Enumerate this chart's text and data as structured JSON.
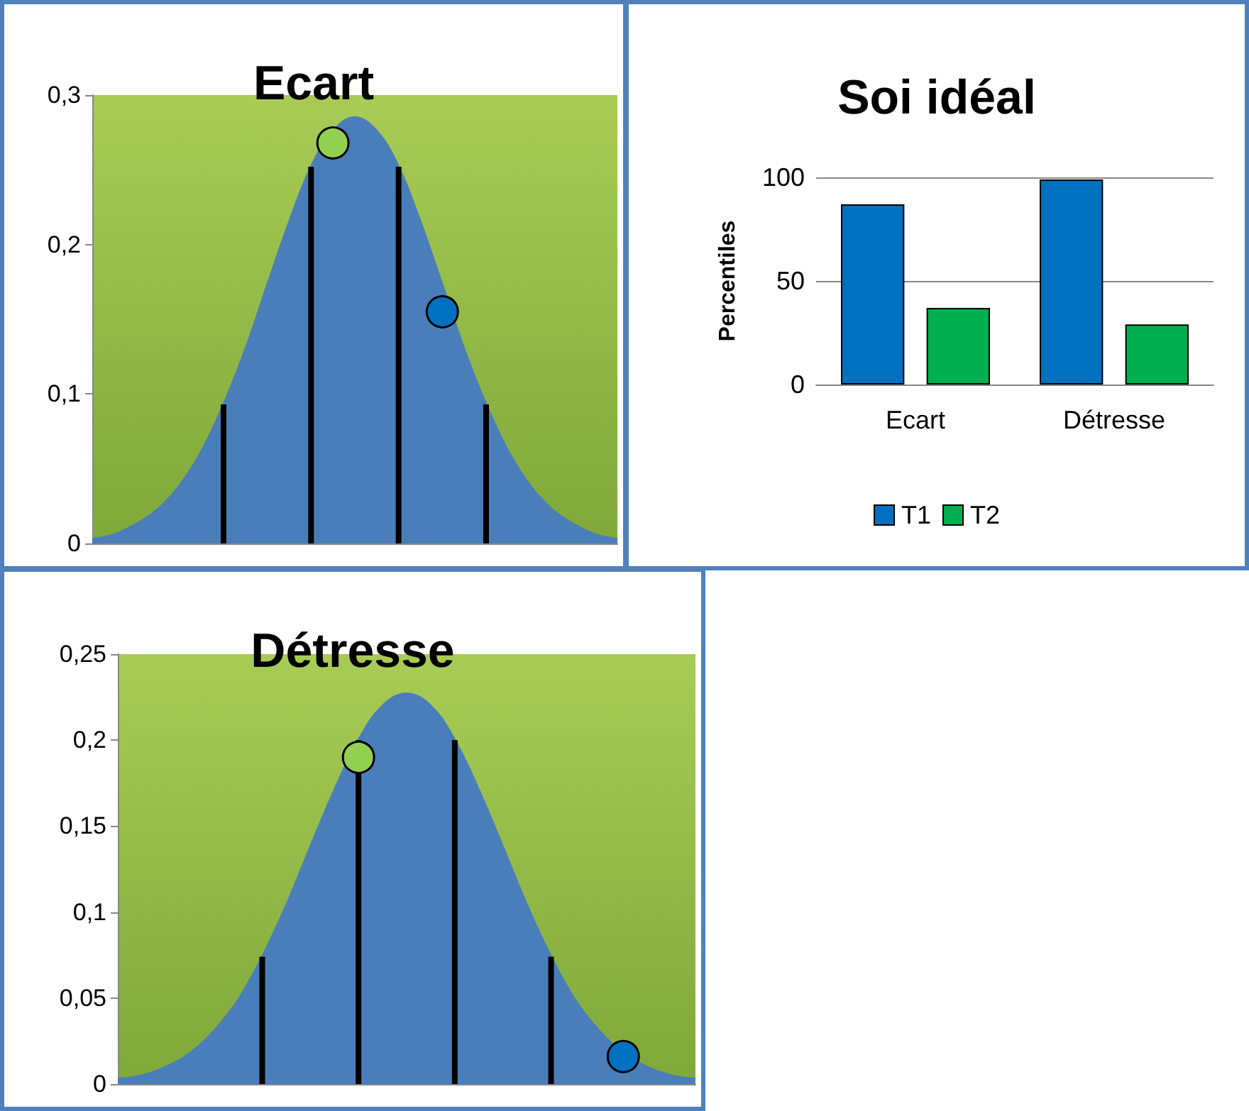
{
  "chart_data": [
    {
      "type": "area",
      "title": "Ecart",
      "categories": [
        null,
        null,
        null,
        null,
        null,
        null,
        null,
        null,
        null,
        null,
        null,
        null,
        null,
        null,
        null,
        null,
        null,
        null,
        null,
        null,
        null,
        null,
        null,
        null,
        null
      ],
      "ylim": [
        0,
        0.3
      ],
      "yticks": [
        {
          "value": 0,
          "label": "0"
        },
        {
          "value": 0.1,
          "label": "0,1"
        },
        {
          "value": 0.2,
          "label": "0,2"
        },
        {
          "value": 0.3,
          "label": "0,3"
        }
      ],
      "grid": false,
      "series": [
        {
          "type": "area",
          "color": "#4a7ebb",
          "values": [
            0.003,
            0.006,
            0.013,
            0.023,
            0.039,
            0.062,
            0.093,
            0.13,
            0.173,
            0.215,
            0.252,
            0.276,
            0.285,
            0.276,
            0.252,
            0.215,
            0.173,
            0.13,
            0.093,
            0.062,
            0.039,
            0.023,
            0.013,
            0.006,
            0.003
          ]
        },
        {
          "type": "bar",
          "color": "#000000",
          "values": [
            null,
            null,
            null,
            null,
            null,
            null,
            0.093,
            null,
            null,
            null,
            0.252,
            null,
            null,
            null,
            0.252,
            null,
            null,
            null,
            0.093,
            null,
            null,
            null,
            null,
            null,
            null
          ]
        },
        {
          "type": "scatter",
          "color": "#92d050",
          "marker": "circle",
          "values": [
            null,
            null,
            null,
            null,
            null,
            null,
            null,
            null,
            null,
            null,
            null,
            0.268,
            null,
            null,
            null,
            null,
            null,
            null,
            null,
            null,
            null,
            null,
            null,
            null,
            null
          ]
        },
        {
          "type": "scatter",
          "color": "#0070c0",
          "marker": "circle",
          "values": [
            null,
            null,
            null,
            null,
            null,
            null,
            null,
            null,
            null,
            null,
            null,
            null,
            null,
            null,
            null,
            null,
            0.155,
            null,
            null,
            null,
            null,
            null,
            null,
            null,
            null
          ]
        }
      ]
    },
    {
      "type": "bar",
      "title": "Soi idéal",
      "ylabel": "Percentiles",
      "categories": [
        "Ecart",
        "Détresse"
      ],
      "ylim": [
        0,
        100
      ],
      "yticks": [
        0,
        50,
        100
      ],
      "grid": "y",
      "legend": "bottom",
      "series": [
        {
          "name": "T1",
          "color": "#0070c0",
          "values": [
            87,
            99
          ]
        },
        {
          "name": "T2",
          "color": "#00b050",
          "values": [
            37,
            29
          ]
        }
      ]
    },
    {
      "type": "area",
      "title": "Détresse",
      "categories": [
        null,
        null,
        null,
        null,
        null,
        null,
        null,
        null,
        null,
        null,
        null,
        null,
        null,
        null,
        null,
        null,
        null,
        null,
        null,
        null,
        null,
        null,
        null,
        null,
        null
      ],
      "ylim": [
        0,
        0.25
      ],
      "yticks": [
        {
          "value": 0,
          "label": "0"
        },
        {
          "value": 0.05,
          "label": "0,05"
        },
        {
          "value": 0.1,
          "label": "0,1"
        },
        {
          "value": 0.15,
          "label": "0,15"
        },
        {
          "value": 0.2,
          "label": "0,2"
        },
        {
          "value": 0.25,
          "label": "0,25"
        }
      ],
      "grid": false,
      "series": [
        {
          "type": "area",
          "color": "#4a7ebb",
          "values": [
            0.003,
            0.005,
            0.01,
            0.018,
            0.031,
            0.049,
            0.074,
            0.104,
            0.138,
            0.171,
            0.2,
            0.22,
            0.227,
            0.22,
            0.2,
            0.171,
            0.138,
            0.104,
            0.074,
            0.049,
            0.031,
            0.018,
            0.01,
            0.005,
            0.003
          ]
        },
        {
          "type": "bar",
          "color": "#000000",
          "values": [
            null,
            null,
            null,
            null,
            null,
            null,
            0.074,
            null,
            null,
            null,
            0.2,
            null,
            null,
            null,
            0.2,
            null,
            null,
            null,
            0.074,
            null,
            null,
            null,
            null,
            null,
            null
          ]
        },
        {
          "type": "scatter",
          "color": "#92d050",
          "marker": "circle",
          "values": [
            null,
            null,
            null,
            null,
            null,
            null,
            null,
            null,
            null,
            null,
            0.19,
            null,
            null,
            null,
            null,
            null,
            null,
            null,
            null,
            null,
            null,
            null,
            null,
            null,
            null
          ]
        },
        {
          "type": "scatter",
          "color": "#0070c0",
          "marker": "circle",
          "values": [
            null,
            null,
            null,
            null,
            null,
            null,
            null,
            null,
            null,
            null,
            null,
            null,
            null,
            null,
            null,
            null,
            null,
            null,
            null,
            null,
            null,
            0.016,
            null,
            null,
            null
          ]
        }
      ]
    }
  ]
}
